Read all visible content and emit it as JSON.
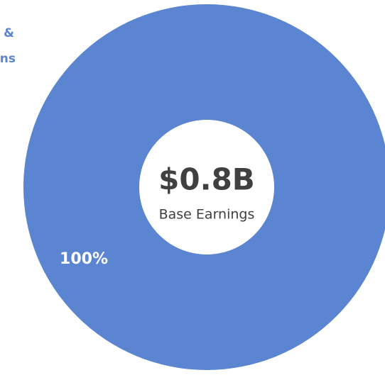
{
  "chart_data": {
    "type": "donut",
    "legend_text": [
      "&",
      "ns"
    ],
    "center_value": "$0.8B",
    "center_label": "Base Earnings",
    "values": [
      100
    ],
    "value_labels": [
      "100%"
    ],
    "colors": [
      "#5b84d1"
    ]
  }
}
